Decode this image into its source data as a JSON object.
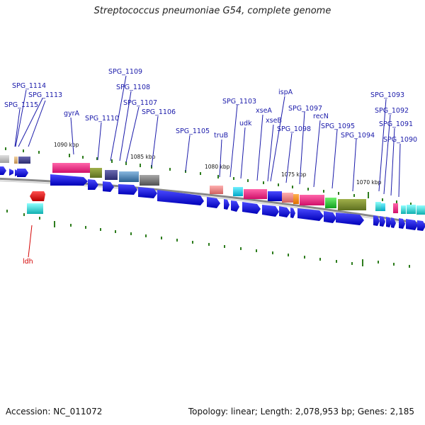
{
  "title": "Streptococcus pneumoniae G54, complete genome",
  "footer": {
    "accession": "Accession: NC_011072",
    "summary": "Topology: linear; Length: 2,078,953 bp; Genes: 2,185"
  },
  "colors": {
    "forward_gene": "#1010e0",
    "reverse_gene": "#e00000",
    "label": "#1a1aaa",
    "highlight_label": "#d40000",
    "tick": "#2e7d1e",
    "backbone": "#888888"
  },
  "position_labels": [
    "1090 kbp",
    "1085 kbp",
    "1080 kbp",
    "1075 kbp",
    "1070 kbp"
  ],
  "gene_labels": [
    "SPG_1114",
    "SPG_1113",
    "SPG_1115",
    "SPG_1109",
    "SPG_1108",
    "gyrA",
    "SPG_1107",
    "SPG_1110",
    "SPG_1106",
    "SPG_1105",
    "SPG_1103",
    "truB",
    "udk",
    "ispA",
    "xseA",
    "xseB",
    "SPG_1097",
    "SPG_1098",
    "recN",
    "SPG_1095",
    "SPG_1094",
    "SPG_1093",
    "SPG_1092",
    "SPG_1091",
    "SPG_1090",
    "ldh"
  ]
}
